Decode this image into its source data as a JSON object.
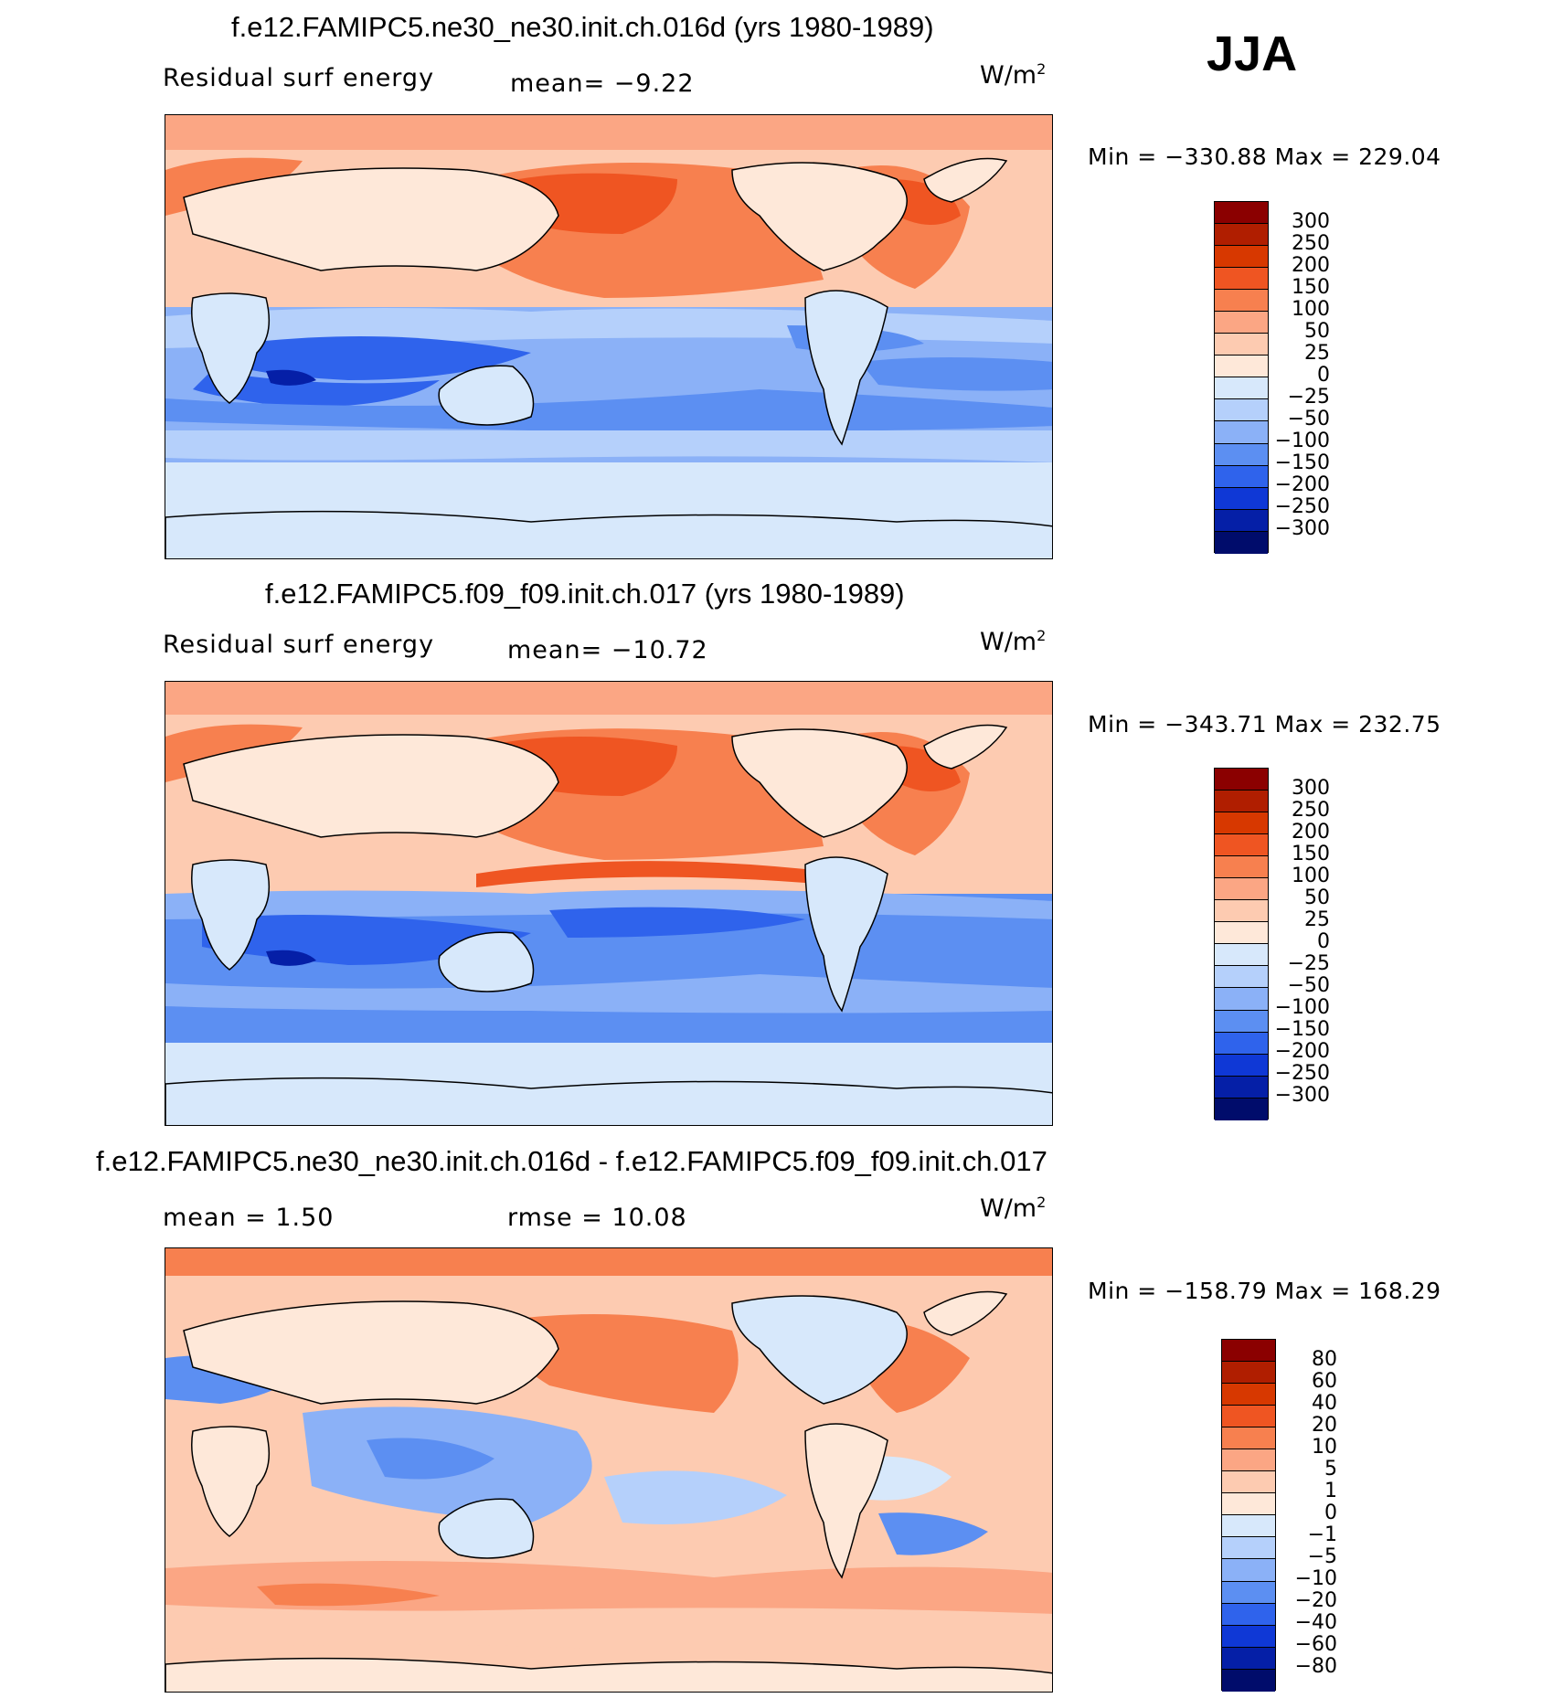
{
  "season": "JJA",
  "units_text": "W/m",
  "units_sup": "2",
  "panels": [
    {
      "title": "f.e12.FAMIPC5.ne30_ne30.init.ch.016d (yrs 1980-1989)",
      "left_label": "Residual  surf  energy",
      "stat_label": "mean=   −9.22",
      "minmax": "Min  =  −330.88  Max  =  229.04",
      "labels": [
        "300",
        "250",
        "200",
        "150",
        "100",
        "50",
        "25",
        "0",
        "−25",
        "−50",
        "−100",
        "−150",
        "−200",
        "−250",
        "−300"
      ]
    },
    {
      "title": "f.e12.FAMIPC5.f09_f09.init.ch.017 (yrs 1980-1989)",
      "left_label": "Residual  surf  energy",
      "stat_label": "mean=  −10.72",
      "minmax": "Min  =  −343.71  Max  =  232.75",
      "labels": [
        "300",
        "250",
        "200",
        "150",
        "100",
        "50",
        "25",
        "0",
        "−25",
        "−50",
        "−100",
        "−150",
        "−200",
        "−250",
        "−300"
      ]
    },
    {
      "title": "f.e12.FAMIPC5.ne30_ne30.init.ch.016d - f.e12.FAMIPC5.f09_f09.init.ch.017",
      "left_label": "mean  =     1.50",
      "stat_label": "rmse  =    10.08",
      "minmax": "Min  =  −158.79  Max  =  168.29",
      "labels": [
        "80",
        "60",
        "40",
        "20",
        "10",
        "5",
        "1",
        "0",
        "−1",
        "−5",
        "−10",
        "−20",
        "−40",
        "−60",
        "−80"
      ]
    }
  ],
  "colorbar_colors": [
    "#8b0000",
    "#b01e00",
    "#d73800",
    "#ef5522",
    "#f7804f",
    "#fba684",
    "#fdcbb1",
    "#fee8d9",
    "#d7e8fb",
    "#b5d0fb",
    "#8bb1f7",
    "#5c8ff2",
    "#2f63ec",
    "#0f38d6",
    "#051fa7",
    "#000c6b"
  ]
}
